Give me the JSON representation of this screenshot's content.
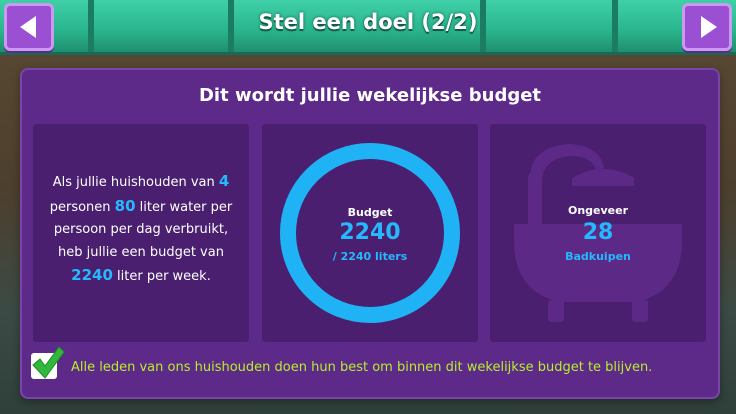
{
  "header": {
    "title": "Stel een doel (2/2)",
    "prev_icon": "arrow-left-icon",
    "next_icon": "arrow-right-icon"
  },
  "panel": {
    "title": "Dit wordt jullie wekelijkse budget"
  },
  "explanation": {
    "part1": "Als jullie huishouden van ",
    "persons": "4",
    "part2": " personen ",
    "liters_per_person": "80",
    "part3": " liter water per persoon per dag verbruikt, heb jullie een budget van ",
    "budget": "2240",
    "part4": " liter per week."
  },
  "budget_ring": {
    "label": "Budget",
    "value": "2240",
    "sub": "/ 2240 liters",
    "fill_fraction": 1.0
  },
  "bathtubs": {
    "icon": "bathtub-icon",
    "label": "Ongeveer",
    "value": "28",
    "unit": "Badkuipen"
  },
  "pledge": {
    "checked": true,
    "text": "Alle leden van ons huishouden doen hun best om binnen dit wekelijkse budget te blijven."
  },
  "colors": {
    "accent_blue": "#26b8ff",
    "panel_purple": "#5e2a8a",
    "pledge_green": "#b6ef2d",
    "button_purple": "#9b4fd3"
  }
}
